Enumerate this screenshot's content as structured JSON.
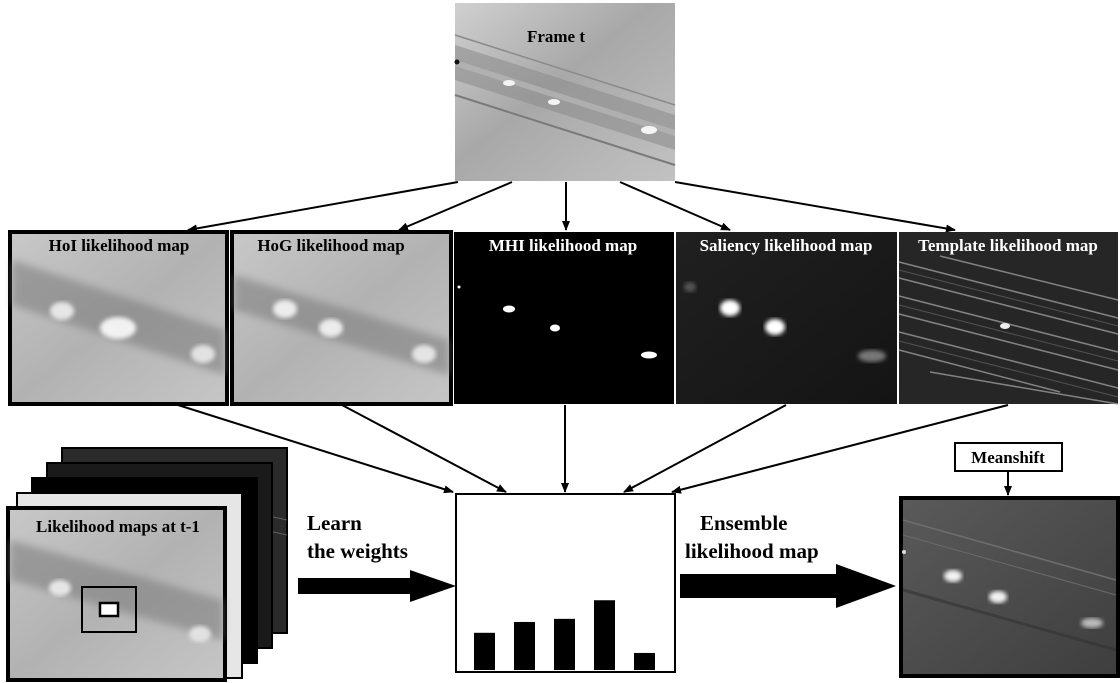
{
  "frame": {
    "title": "Frame t"
  },
  "maps": [
    {
      "label": "HoI likelihood map"
    },
    {
      "label": "HoG likelihood map"
    },
    {
      "label": "MHI likelihood map"
    },
    {
      "label": "Saliency likelihood map"
    },
    {
      "label": "Template likelihood map"
    }
  ],
  "previous": {
    "label": "Likelihood maps at t-1"
  },
  "learn": {
    "line1": "Learn",
    "line2": "the weights"
  },
  "ensemble": {
    "line1": "Ensemble",
    "line2": "likelihood map"
  },
  "meanshift": {
    "label": "Meanshift"
  },
  "weights_chart": {
    "type": "bar",
    "values": [
      0.24,
      0.31,
      0.33,
      0.45,
      0.11
    ],
    "ylim": [
      0,
      1
    ]
  }
}
